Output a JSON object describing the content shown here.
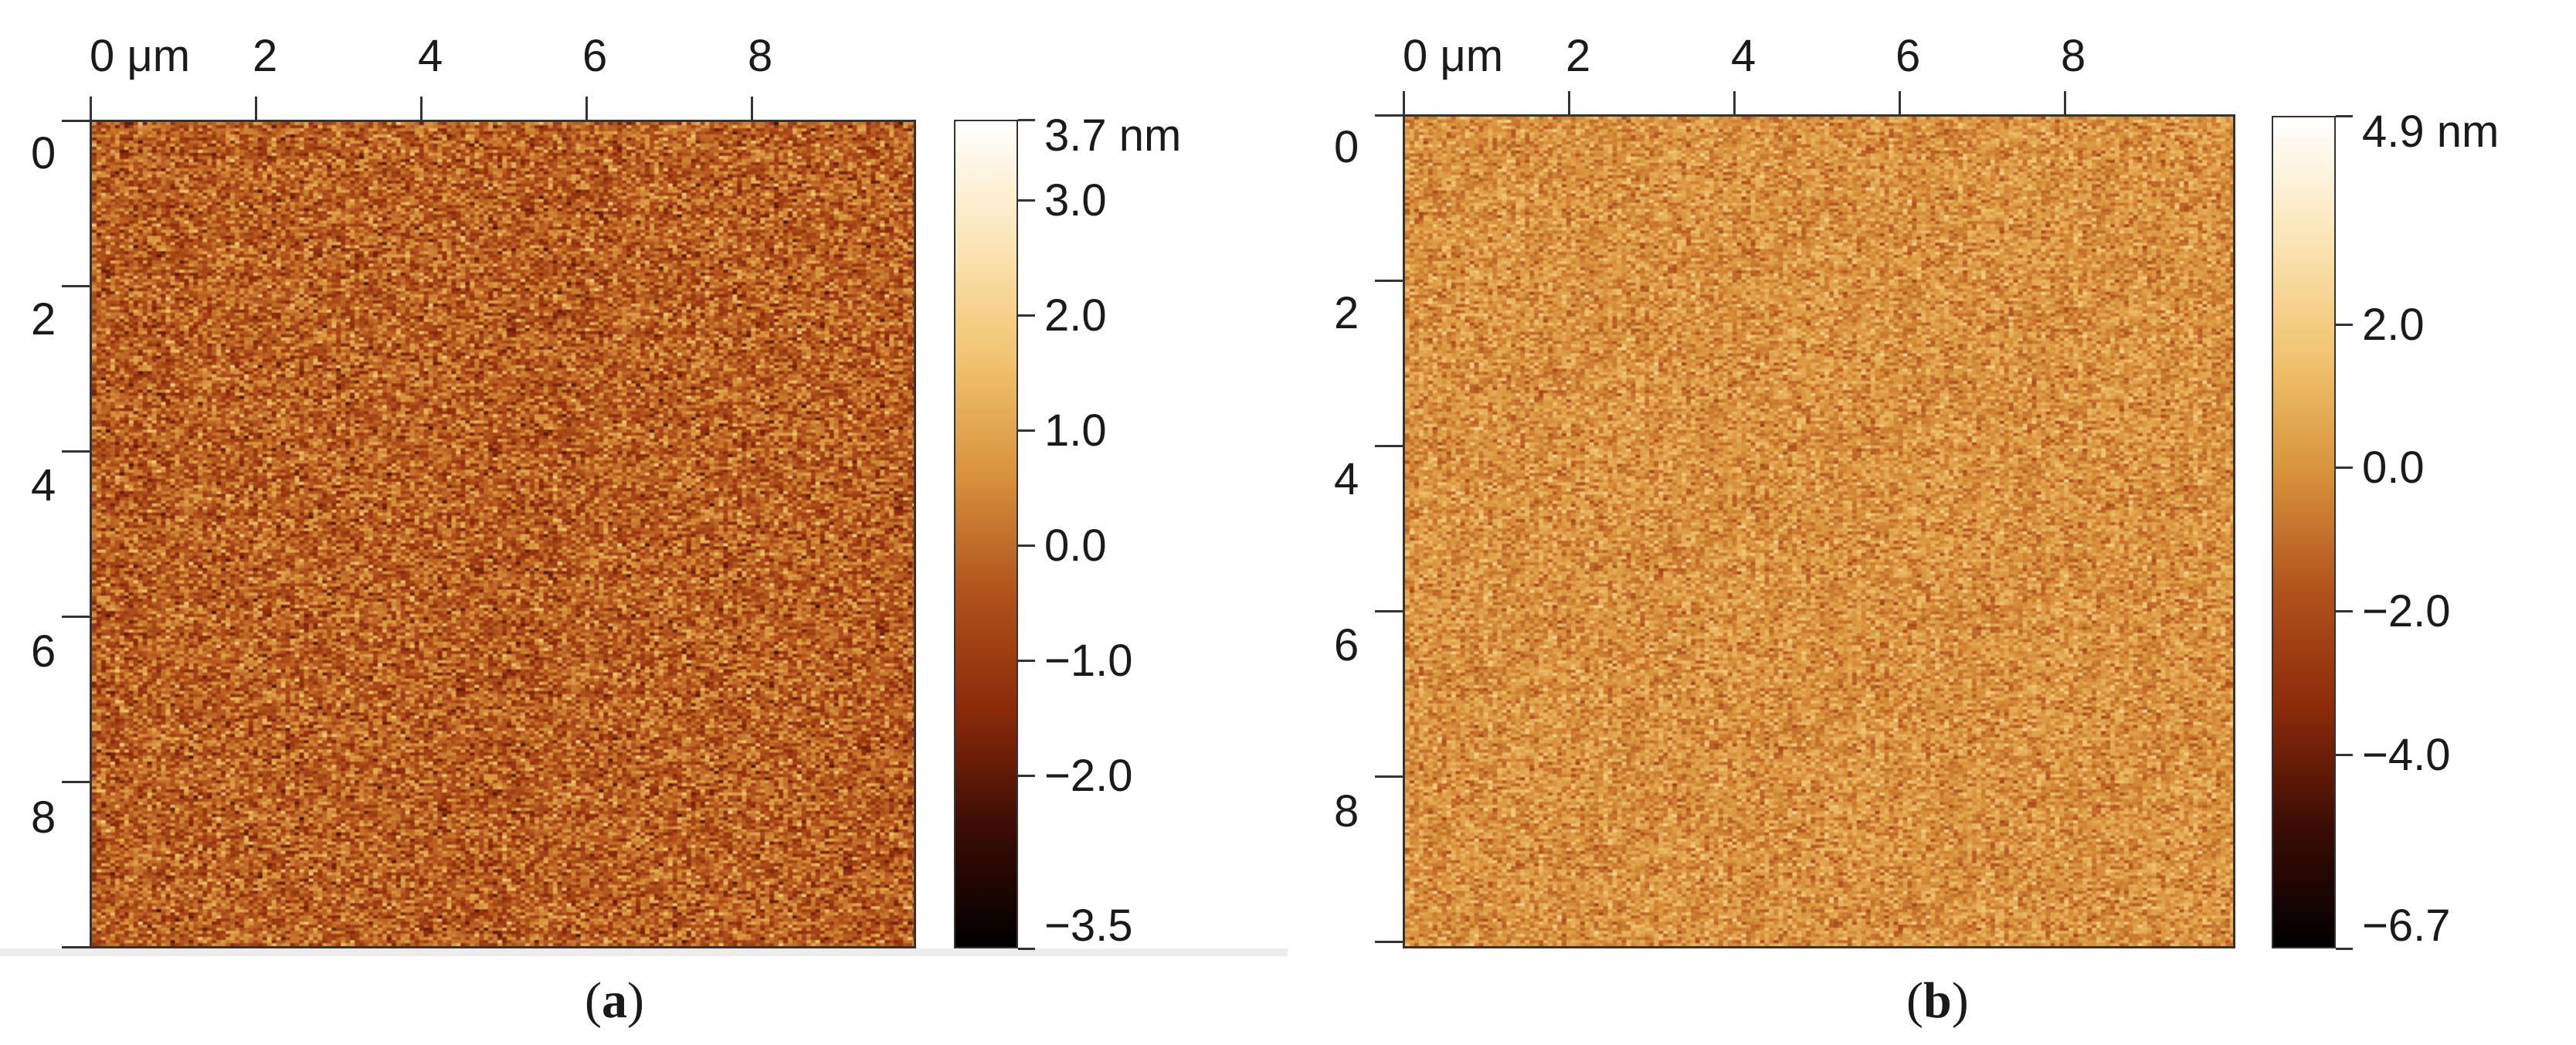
{
  "panels": [
    {
      "id": "a",
      "caption_open": "(",
      "caption_letter": "a",
      "caption_close": ")",
      "x_axis_unit": "0 μm",
      "x_ticks": [
        "2",
        "4",
        "6",
        "8"
      ],
      "y_ticks": [
        "0",
        "2",
        "4",
        "6",
        "8"
      ],
      "colorbar_labels": [
        "3.7 nm",
        "3.0",
        "2.0",
        "1.0",
        "0.0",
        "−1.0",
        "−2.0",
        "−3.5"
      ],
      "colorbar_values": [
        3.7,
        3.0,
        2.0,
        1.0,
        0.0,
        -1.0,
        -2.0,
        -3.5
      ],
      "colorbar_range": [
        -3.5,
        3.7
      ]
    },
    {
      "id": "b",
      "caption_open": "(",
      "caption_letter": "b",
      "caption_close": ")",
      "x_axis_unit": "0 μm",
      "x_ticks": [
        "2",
        "4",
        "6",
        "8"
      ],
      "y_ticks": [
        "0",
        "2",
        "4",
        "6",
        "8"
      ],
      "colorbar_labels": [
        "4.9 nm",
        "2.0",
        "0.0",
        "−2.0",
        "−4.0",
        "−6.7"
      ],
      "colorbar_values": [
        4.9,
        2.0,
        0.0,
        -2.0,
        -4.0,
        -6.7
      ],
      "colorbar_range": [
        -6.7,
        4.9
      ]
    }
  ],
  "colormap": [
    "#000000",
    "#3a0c04",
    "#8b2a0a",
    "#b0521c",
    "#d8923c",
    "#f2c470",
    "#fbe6b8",
    "#ffffff"
  ]
}
